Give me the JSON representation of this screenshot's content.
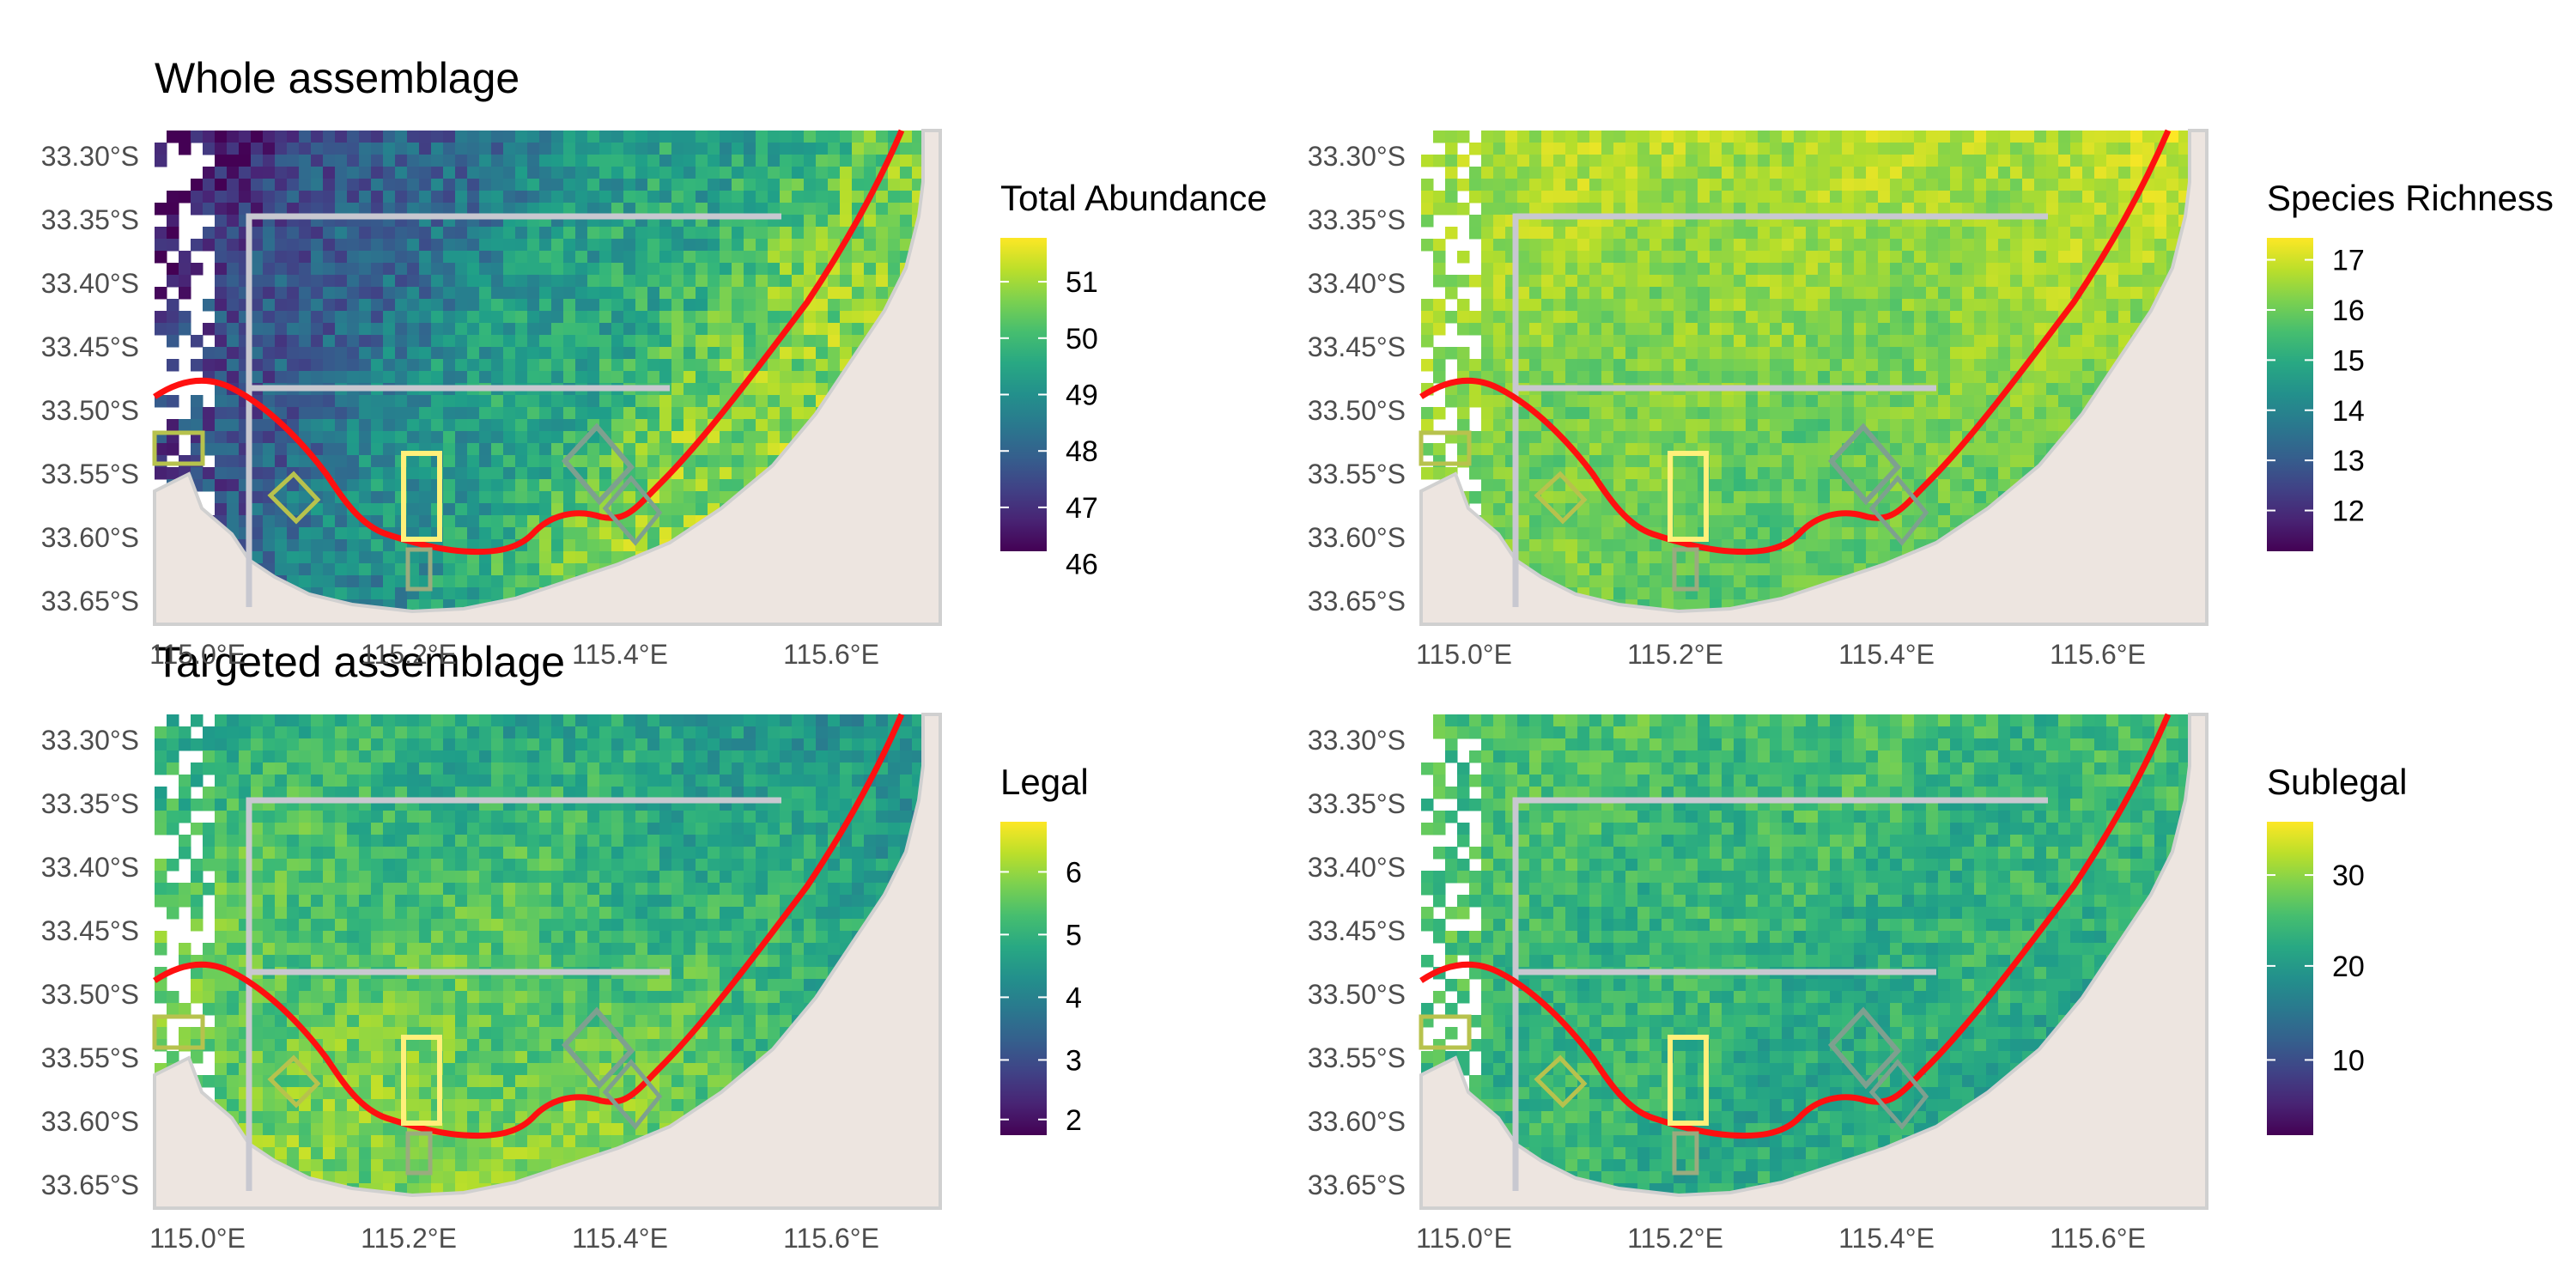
{
  "titles": {
    "top": "Whole assemblage",
    "bottom": "Targeted assemblage"
  },
  "axes": {
    "lat_labels": [
      "33.30°S",
      "33.35°S",
      "33.40°S",
      "33.45°S",
      "33.50°S",
      "33.55°S",
      "33.60°S",
      "33.65°S"
    ],
    "lon_labels": [
      "115.0°E",
      "115.2°E",
      "115.4°E",
      "115.6°E"
    ]
  },
  "colors": {
    "land": "#ede5e0",
    "coast_line": "#d0d0d0",
    "contour_red": "#ff1010",
    "zone_grey": "#c8c8d0",
    "zone_yellow": "#fff07a",
    "zone_olive": "#b7c24d",
    "zone_sage": "#9aab7e",
    "zone_teal": "#7ea08f",
    "viridis": [
      "#440154",
      "#482878",
      "#3e4989",
      "#31688e",
      "#26828e",
      "#1f9e89",
      "#35b779",
      "#6ece58",
      "#b5de2b",
      "#fde725"
    ]
  },
  "panels": [
    {
      "id": "total-abundance",
      "legend": {
        "title": "Total Abundance",
        "ticks": [
          "51",
          "50",
          "49",
          "48",
          "47",
          "46"
        ],
        "tick_fracs": [
          0.14,
          0.32,
          0.5,
          0.68,
          0.86,
          1.04
        ]
      },
      "field": {
        "bias": 0.72,
        "gradient": -0.9,
        "noise": 0.28,
        "coastal": -0.35
      }
    },
    {
      "id": "species-richness",
      "legend": {
        "title": "Species Richness",
        "ticks": [
          "17",
          "16",
          "15",
          "14",
          "13",
          "12"
        ],
        "tick_fracs": [
          0.07,
          0.23,
          0.39,
          0.55,
          0.71,
          0.87
        ]
      },
      "field": {
        "bias": 0.12,
        "gradient": -0.05,
        "noise": 0.16,
        "coastal": 0.18
      }
    },
    {
      "id": "legal",
      "legend": {
        "title": "Legal",
        "ticks": [
          "6",
          "5",
          "4",
          "3",
          "2"
        ],
        "tick_fracs": [
          0.16,
          0.36,
          0.56,
          0.76,
          0.95
        ]
      },
      "field": {
        "bias": 0.38,
        "gradient": 0.25,
        "noise": 0.22,
        "coastal": -0.25
      }
    },
    {
      "id": "sublegal",
      "legend": {
        "title": "Sublegal",
        "ticks": [
          "30",
          "20",
          "10"
        ],
        "tick_fracs": [
          0.17,
          0.46,
          0.76
        ]
      },
      "field": {
        "bias": 0.3,
        "gradient": 0.05,
        "noise": 0.2,
        "coastal": 0.1
      }
    }
  ]
}
